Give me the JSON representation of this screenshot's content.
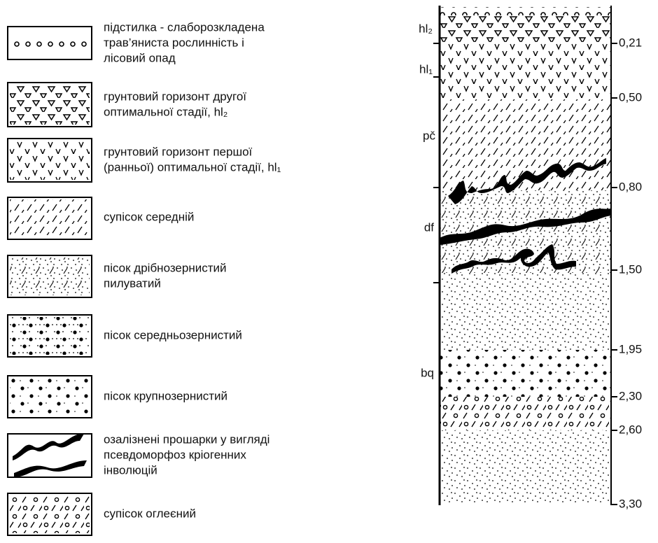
{
  "legend": [
    {
      "lines": [
        "підстилка - слаборозкладена",
        "трав’яниста рослинність і",
        "лісовий опад"
      ]
    },
    {
      "lines": [
        "грунтовий горизонт другої",
        " оптимальної стадії, hl₂"
      ]
    },
    {
      "lines": [
        "грунтовий горизонт першої",
        "(ранньої) оптимальної стадії, hl₁"
      ]
    },
    {
      "lines": [
        "супісок середній"
      ]
    },
    {
      "lines": [
        "пісок дрібнозернистий",
        "пилуватий"
      ]
    },
    {
      "lines": [
        "пісок середньозернистий"
      ]
    },
    {
      "lines": [
        "пісок крупнозернистий"
      ]
    },
    {
      "lines": [
        "озалізнені прошарки у вигляді",
        "псевдоморфоз кріогенних",
        "інволюцій"
      ]
    },
    {
      "lines": [
        "супісок оглеєний"
      ]
    }
  ],
  "section": {
    "horizons": [
      "hl₂",
      "hl₁",
      "pč",
      "df",
      "bq"
    ],
    "depths": [
      "0,21",
      "0,50",
      "0,80",
      "1,50",
      "1,95",
      "2,30",
      "2,60",
      "3,30"
    ]
  }
}
